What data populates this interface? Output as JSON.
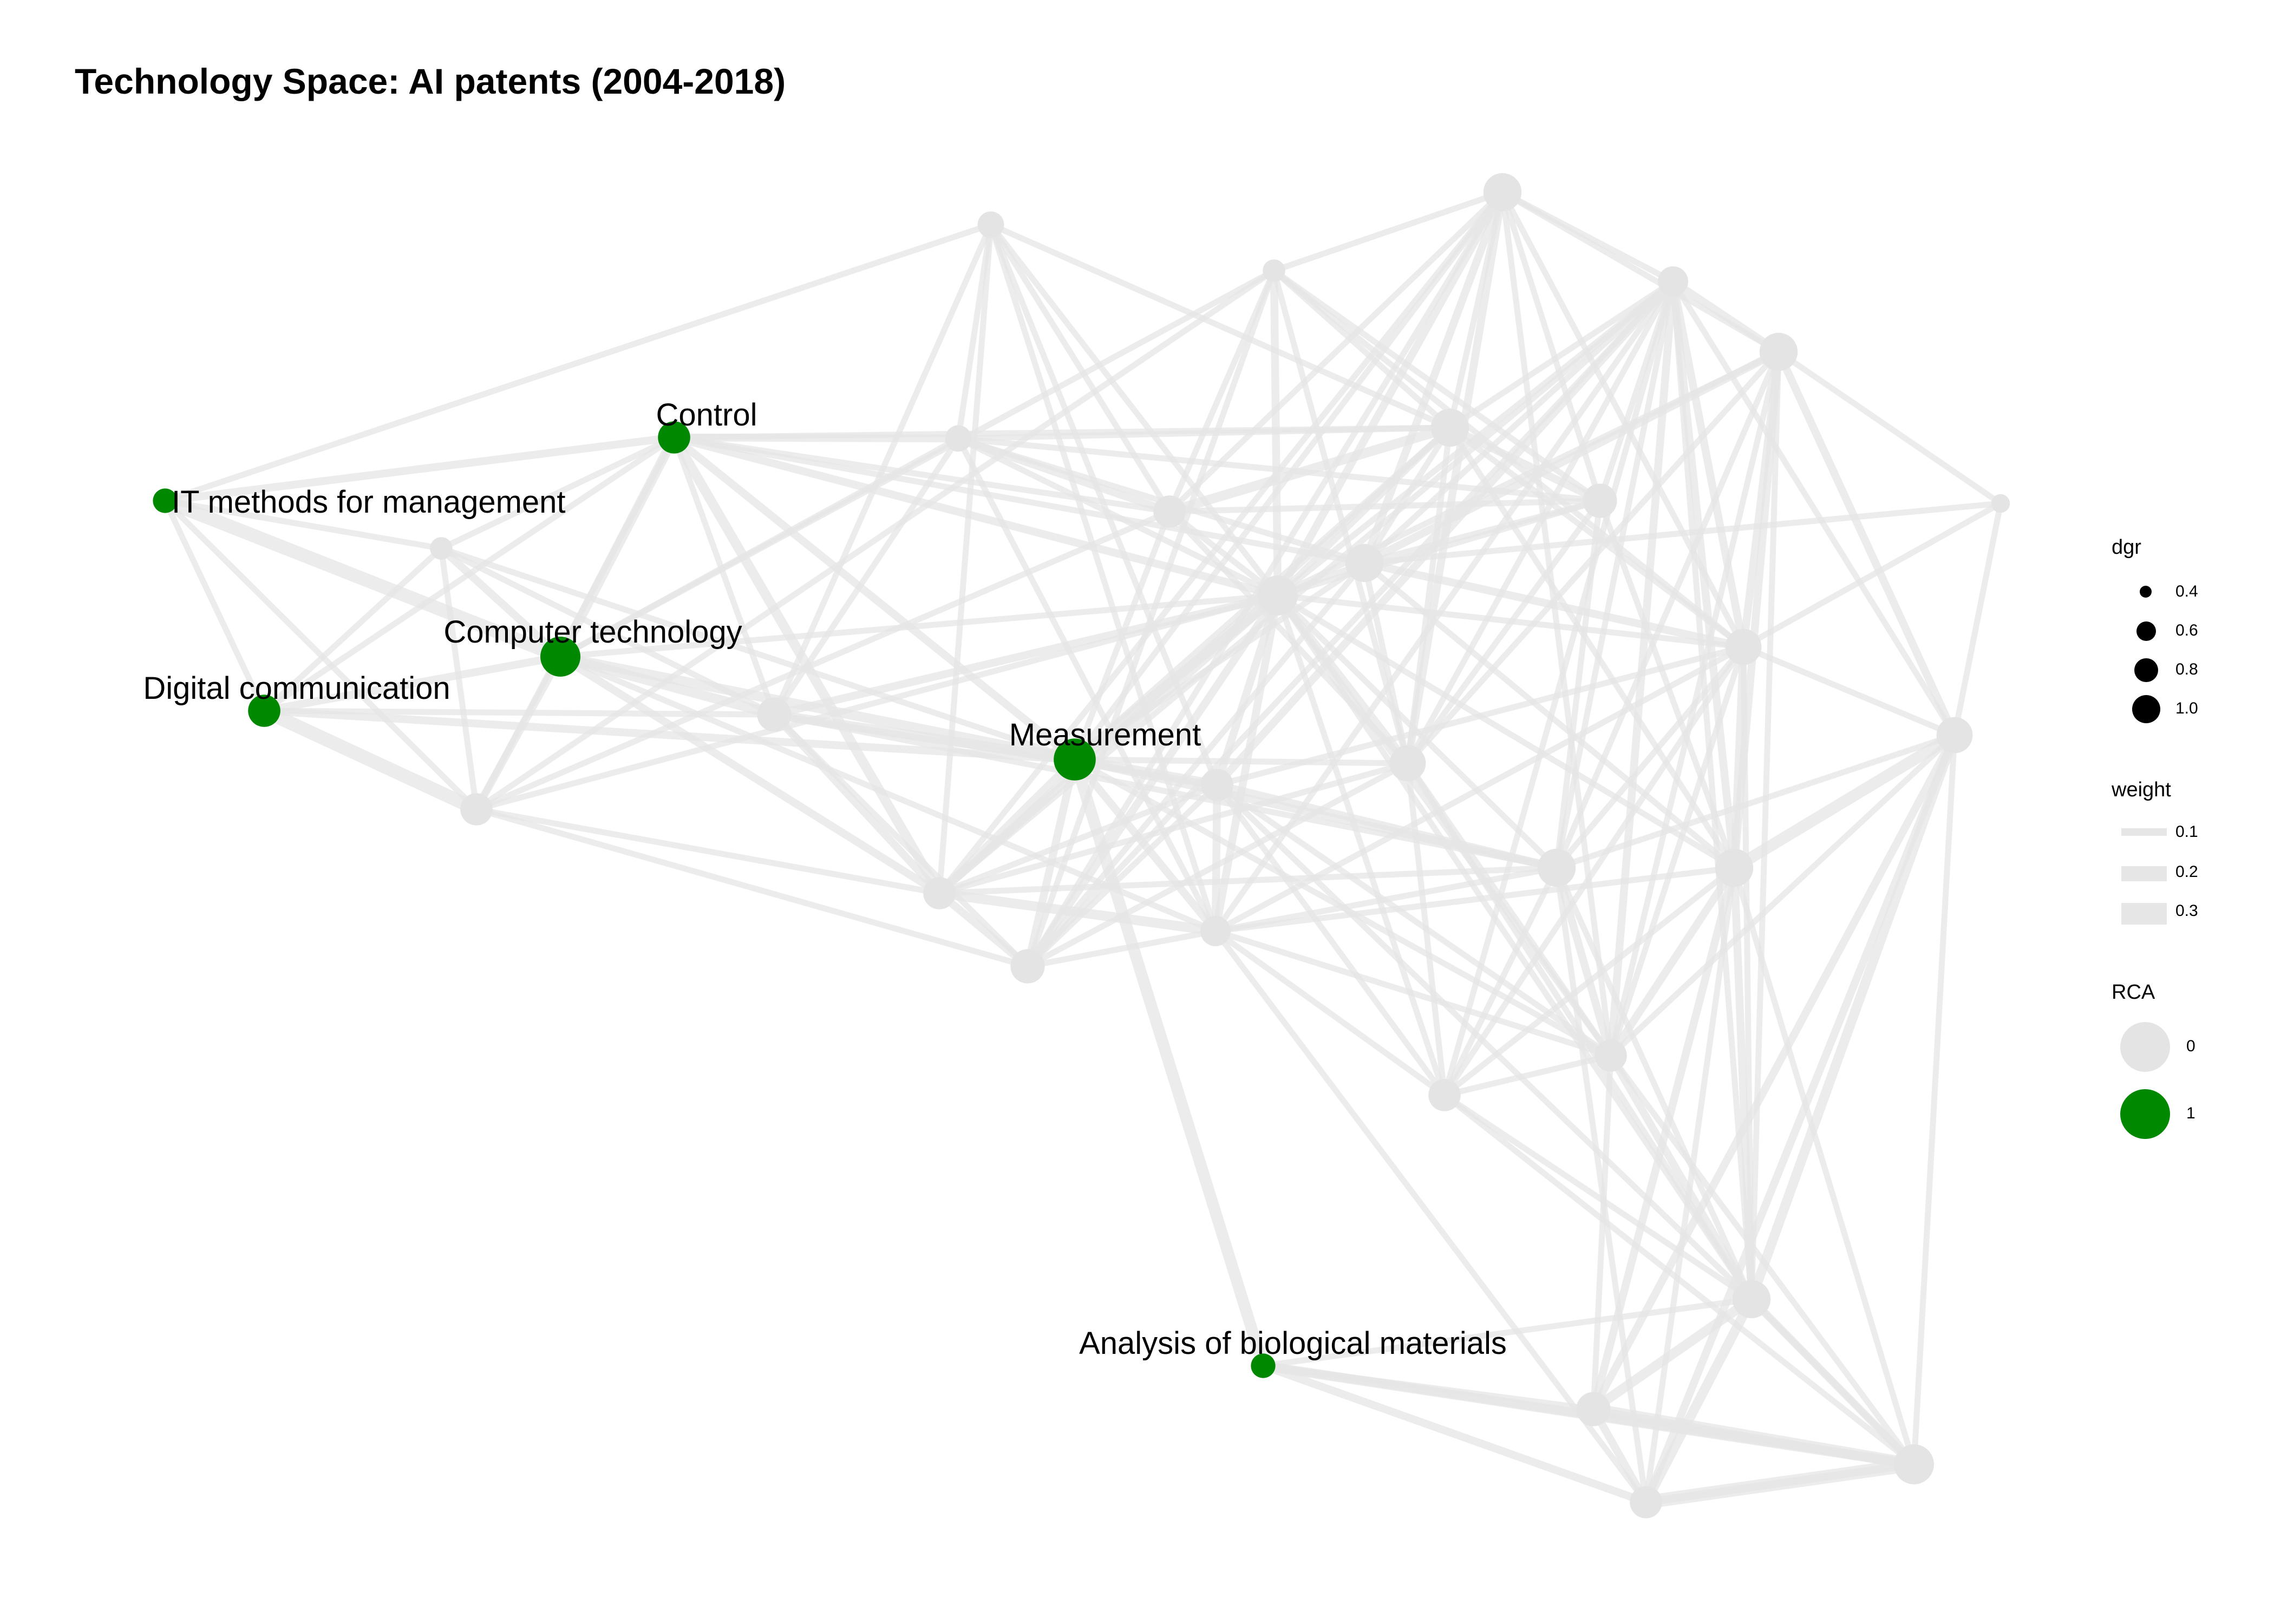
{
  "title": "Technology Space: AI patents (2004-2018)",
  "colors": {
    "rca_1": "#008800",
    "rca_0": "#e4e4e4",
    "edge": "#e6e6e6",
    "legend_dot": "#000000"
  },
  "legend": {
    "dgr": {
      "title": "dgr",
      "labels": [
        "0.4",
        "0.6",
        "0.8",
        "1.0"
      ]
    },
    "weight": {
      "title": "weight",
      "labels": [
        "0.1",
        "0.2",
        "0.3"
      ]
    },
    "rca": {
      "title": "RCA",
      "labels": [
        "0",
        "1"
      ]
    }
  },
  "nodes": [
    {
      "id": "it",
      "label": "IT methods for management",
      "rca": 1,
      "dgr": 0.35
    },
    {
      "id": "ctrl",
      "label": "Control",
      "rca": 1,
      "dgr": 0.55
    },
    {
      "id": "ct",
      "label": "Computer technology",
      "rca": 1,
      "dgr": 0.75
    },
    {
      "id": "dc",
      "label": "Digital communication",
      "rca": 1,
      "dgr": 0.55
    },
    {
      "id": "meas",
      "label": "Measurement",
      "rca": 1,
      "dgr": 0.8
    },
    {
      "id": "bio",
      "label": "Analysis of biological materials",
      "rca": 1,
      "dgr": 0.35
    },
    {
      "id": "n1",
      "label": "",
      "rca": 0,
      "dgr": 0.3
    },
    {
      "id": "n2",
      "label": "",
      "rca": 0,
      "dgr": 0.55
    },
    {
      "id": "n3",
      "label": "",
      "rca": 0,
      "dgr": 0.6
    },
    {
      "id": "n4",
      "label": "",
      "rca": 0,
      "dgr": 0.55
    },
    {
      "id": "n5",
      "label": "",
      "rca": 0,
      "dgr": 0.4
    },
    {
      "id": "n6",
      "label": "",
      "rca": 0,
      "dgr": 0.4
    },
    {
      "id": "n7",
      "label": "",
      "rca": 0,
      "dgr": 0.55
    },
    {
      "id": "n8",
      "label": "",
      "rca": 0,
      "dgr": 0.75
    },
    {
      "id": "n9",
      "label": "",
      "rca": 0,
      "dgr": 0.55
    },
    {
      "id": "n10",
      "label": "",
      "rca": 0,
      "dgr": 0.6
    },
    {
      "id": "n11",
      "label": "",
      "rca": 0,
      "dgr": 0.5
    },
    {
      "id": "n12",
      "label": "",
      "rca": 0,
      "dgr": 0.3
    },
    {
      "id": "n13",
      "label": "",
      "rca": 0,
      "dgr": 0.7
    },
    {
      "id": "n14",
      "label": "",
      "rca": 0,
      "dgr": 0.65
    },
    {
      "id": "n15",
      "label": "",
      "rca": 0,
      "dgr": 0.7
    },
    {
      "id": "n16",
      "label": "",
      "rca": 0,
      "dgr": 0.6
    },
    {
      "id": "n17",
      "label": "",
      "rca": 0,
      "dgr": 0.7
    },
    {
      "id": "n18",
      "label": "",
      "rca": 0,
      "dgr": 0.55
    },
    {
      "id": "n19",
      "label": "",
      "rca": 0,
      "dgr": 0.5
    },
    {
      "id": "n20",
      "label": "",
      "rca": 0,
      "dgr": 0.7
    },
    {
      "id": "n21",
      "label": "",
      "rca": 0,
      "dgr": 0.65
    },
    {
      "id": "n22",
      "label": "",
      "rca": 0,
      "dgr": 0.55
    },
    {
      "id": "n23",
      "label": "",
      "rca": 0,
      "dgr": 0.7
    },
    {
      "id": "n24",
      "label": "",
      "rca": 0,
      "dgr": 0.7
    },
    {
      "id": "n25",
      "label": "",
      "rca": 0,
      "dgr": 0.65
    },
    {
      "id": "n26",
      "label": "",
      "rca": 0,
      "dgr": 0.7
    },
    {
      "id": "n27",
      "label": "",
      "rca": 0,
      "dgr": 0.6
    },
    {
      "id": "n28",
      "label": "",
      "rca": 0,
      "dgr": 0.55
    },
    {
      "id": "n29",
      "label": "",
      "rca": 0,
      "dgr": 0.75
    },
    {
      "id": "n30",
      "label": "",
      "rca": 0,
      "dgr": 0.5
    },
    {
      "id": "n31",
      "label": "",
      "rca": 0,
      "dgr": 0.2
    }
  ],
  "edges": [
    {
      "s": "it",
      "t": "ctrl",
      "w": 0.15
    },
    {
      "s": "it",
      "t": "ct",
      "w": 0.3
    },
    {
      "s": "it",
      "t": "n2",
      "w": 0.1
    },
    {
      "s": "it",
      "t": "n1",
      "w": 0.1
    },
    {
      "s": "it",
      "t": "dc",
      "w": 0.1
    },
    {
      "s": "it",
      "t": "n6",
      "w": 0.1
    },
    {
      "s": "n1",
      "t": "ct",
      "w": 0.15
    },
    {
      "s": "n1",
      "t": "n2",
      "w": 0.1
    },
    {
      "s": "n1",
      "t": "n3",
      "w": 0.1
    },
    {
      "s": "n1",
      "t": "ctrl",
      "w": 0.1
    },
    {
      "s": "n1",
      "t": "meas",
      "w": 0.1
    },
    {
      "s": "dc",
      "t": "ct",
      "w": 0.15
    },
    {
      "s": "dc",
      "t": "n2",
      "w": 0.3
    },
    {
      "s": "dc",
      "t": "n3",
      "w": 0.1
    },
    {
      "s": "dc",
      "t": "ctrl",
      "w": 0.1
    },
    {
      "s": "dc",
      "t": "meas",
      "w": 0.15
    },
    {
      "s": "dc",
      "t": "n1",
      "w": 0.1
    },
    {
      "s": "ct",
      "t": "ctrl",
      "w": 0.2
    },
    {
      "s": "ct",
      "t": "n2",
      "w": 0.15
    },
    {
      "s": "ct",
      "t": "n3",
      "w": 0.2
    },
    {
      "s": "ct",
      "t": "meas",
      "w": 0.2
    },
    {
      "s": "ct",
      "t": "n4",
      "w": 0.15
    },
    {
      "s": "ct",
      "t": "n8",
      "w": 0.1
    },
    {
      "s": "ct",
      "t": "n5",
      "w": 0.1
    },
    {
      "s": "ct",
      "t": "n11",
      "w": 0.1
    },
    {
      "s": "ct",
      "t": "n12",
      "w": 0.1
    },
    {
      "s": "ctrl",
      "t": "n5",
      "w": 0.15
    },
    {
      "s": "ctrl",
      "t": "n3",
      "w": 0.1
    },
    {
      "s": "ctrl",
      "t": "n4",
      "w": 0.2
    },
    {
      "s": "ctrl",
      "t": "meas",
      "w": 0.15
    },
    {
      "s": "ctrl",
      "t": "n8",
      "w": 0.15
    },
    {
      "s": "ctrl",
      "t": "n7",
      "w": 0.1
    },
    {
      "s": "ctrl",
      "t": "n2",
      "w": 0.1
    },
    {
      "s": "ctrl",
      "t": "n13",
      "w": 0.1
    },
    {
      "s": "ctrl",
      "t": "n20",
      "w": 0.1
    },
    {
      "s": "n2",
      "t": "n4",
      "w": 0.1
    },
    {
      "s": "n2",
      "t": "n8",
      "w": 0.1
    },
    {
      "s": "n2",
      "t": "n10",
      "w": 0.1
    },
    {
      "s": "n2",
      "t": "n12",
      "w": 0.1
    },
    {
      "s": "n2",
      "t": "n7",
      "w": 0.1
    },
    {
      "s": "n3",
      "t": "meas",
      "w": 0.2
    },
    {
      "s": "n3",
      "t": "n4",
      "w": 0.15
    },
    {
      "s": "n3",
      "t": "n8",
      "w": 0.15
    },
    {
      "s": "n3",
      "t": "n5",
      "w": 0.1
    },
    {
      "s": "n3",
      "t": "n10",
      "w": 0.1
    },
    {
      "s": "n3",
      "t": "n9",
      "w": 0.1
    },
    {
      "s": "n3",
      "t": "n17",
      "w": 0.1
    },
    {
      "s": "n3",
      "t": "n6",
      "w": 0.1
    },
    {
      "s": "meas",
      "t": "n9",
      "w": 0.2
    },
    {
      "s": "meas",
      "t": "n4",
      "w": 0.15
    },
    {
      "s": "meas",
      "t": "n8",
      "w": 0.2
    },
    {
      "s": "meas",
      "t": "n10",
      "w": 0.15
    },
    {
      "s": "meas",
      "t": "n11",
      "w": 0.15
    },
    {
      "s": "meas",
      "t": "bio",
      "w": 0.25
    },
    {
      "s": "meas",
      "t": "n17",
      "w": 0.15
    },
    {
      "s": "meas",
      "t": "n13",
      "w": 0.1
    },
    {
      "s": "meas",
      "t": "n14",
      "w": 0.1
    },
    {
      "s": "meas",
      "t": "n7",
      "w": 0.1
    },
    {
      "s": "meas",
      "t": "n20",
      "w": 0.1
    },
    {
      "s": "meas",
      "t": "n22",
      "w": 0.1
    },
    {
      "s": "meas",
      "t": "n15",
      "w": 0.1
    },
    {
      "s": "n4",
      "t": "n11",
      "w": 0.2
    },
    {
      "s": "n4",
      "t": "n10",
      "w": 0.15
    },
    {
      "s": "n4",
      "t": "n9",
      "w": 0.1
    },
    {
      "s": "n4",
      "t": "n8",
      "w": 0.15
    },
    {
      "s": "n4",
      "t": "n14",
      "w": 0.1
    },
    {
      "s": "n4",
      "t": "n15",
      "w": 0.1
    },
    {
      "s": "n4",
      "t": "n6",
      "w": 0.1
    },
    {
      "s": "n4",
      "t": "n13",
      "w": 0.1
    },
    {
      "s": "n4",
      "t": "n19",
      "w": 0.1
    },
    {
      "s": "n4",
      "t": "n17",
      "w": 0.1
    },
    {
      "s": "n5",
      "t": "n6",
      "w": 0.1
    },
    {
      "s": "n5",
      "t": "n7",
      "w": 0.15
    },
    {
      "s": "n5",
      "t": "n8",
      "w": 0.1
    },
    {
      "s": "n5",
      "t": "n13",
      "w": 0.1
    },
    {
      "s": "n5",
      "t": "n16",
      "w": 0.1
    },
    {
      "s": "n5",
      "t": "n20",
      "w": 0.1
    },
    {
      "s": "n5",
      "t": "n11",
      "w": 0.1
    },
    {
      "s": "n6",
      "t": "n7",
      "w": 0.1
    },
    {
      "s": "n6",
      "t": "n8",
      "w": 0.1
    },
    {
      "s": "n6",
      "t": "n13",
      "w": 0.1
    },
    {
      "s": "n6",
      "t": "n9",
      "w": 0.1
    },
    {
      "s": "n6",
      "t": "n11",
      "w": 0.1
    },
    {
      "s": "n7",
      "t": "n13",
      "w": 0.2
    },
    {
      "s": "n7",
      "t": "n8",
      "w": 0.1
    },
    {
      "s": "n7",
      "t": "n12",
      "w": 0.1
    },
    {
      "s": "n7",
      "t": "n14",
      "w": 0.1
    },
    {
      "s": "n7",
      "t": "n16",
      "w": 0.1
    },
    {
      "s": "n7",
      "t": "n15",
      "w": 0.1
    },
    {
      "s": "n8",
      "t": "n9",
      "w": 0.15
    },
    {
      "s": "n8",
      "t": "n10",
      "w": 0.15
    },
    {
      "s": "n8",
      "t": "n11",
      "w": 0.15
    },
    {
      "s": "n8",
      "t": "n12",
      "w": 0.15
    },
    {
      "s": "n8",
      "t": "n13",
      "w": 0.1
    },
    {
      "s": "n8",
      "t": "n14",
      "w": 0.15
    },
    {
      "s": "n8",
      "t": "n15",
      "w": 0.15
    },
    {
      "s": "n8",
      "t": "n16",
      "w": 0.1
    },
    {
      "s": "n8",
      "t": "n17",
      "w": 0.1
    },
    {
      "s": "n8",
      "t": "n18",
      "w": 0.1
    },
    {
      "s": "n8",
      "t": "n19",
      "w": 0.1
    },
    {
      "s": "n8",
      "t": "n20",
      "w": 0.1
    },
    {
      "s": "n8",
      "t": "n21",
      "w": 0.1
    },
    {
      "s": "n8",
      "t": "n22",
      "w": 0.1
    },
    {
      "s": "n8",
      "t": "n23",
      "w": 0.1
    },
    {
      "s": "n8",
      "t": "n24",
      "w": 0.1
    },
    {
      "s": "n8",
      "t": "n26",
      "w": 0.1
    },
    {
      "s": "n9",
      "t": "n10",
      "w": 0.1
    },
    {
      "s": "n9",
      "t": "n11",
      "w": 0.15
    },
    {
      "s": "n9",
      "t": "n17",
      "w": 0.15
    },
    {
      "s": "n9",
      "t": "n18",
      "w": 0.1
    },
    {
      "s": "n9",
      "t": "n19",
      "w": 0.15
    },
    {
      "s": "n9",
      "t": "n21",
      "w": 0.1
    },
    {
      "s": "n9",
      "t": "n22",
      "w": 0.1
    },
    {
      "s": "n9",
      "t": "n26",
      "w": 0.1
    },
    {
      "s": "n10",
      "t": "n11",
      "w": 0.1
    },
    {
      "s": "n10",
      "t": "n12",
      "w": 0.1
    },
    {
      "s": "n10",
      "t": "n14",
      "w": 0.1
    },
    {
      "s": "n10",
      "t": "n19",
      "w": 0.1
    },
    {
      "s": "n10",
      "t": "n20",
      "w": 0.1
    },
    {
      "s": "n10",
      "t": "n15",
      "w": 0.1
    },
    {
      "s": "n11",
      "t": "n17",
      "w": 0.1
    },
    {
      "s": "n11",
      "t": "n19",
      "w": 0.1
    },
    {
      "s": "n11",
      "t": "n21",
      "w": 0.1
    },
    {
      "s": "n11",
      "t": "n22",
      "w": 0.1
    },
    {
      "s": "n11",
      "t": "n24",
      "w": 0.1
    },
    {
      "s": "n11",
      "t": "n18",
      "w": 0.1
    },
    {
      "s": "n12",
      "t": "n13",
      "w": 0.1
    },
    {
      "s": "n12",
      "t": "n14",
      "w": 0.1
    },
    {
      "s": "n12",
      "t": "n15",
      "w": 0.1
    },
    {
      "s": "n12",
      "t": "n16",
      "w": 0.1
    },
    {
      "s": "n13",
      "t": "n14",
      "w": 0.1
    },
    {
      "s": "n13",
      "t": "n15",
      "w": 0.1
    },
    {
      "s": "n13",
      "t": "n16",
      "w": 0.15
    },
    {
      "s": "n13",
      "t": "n19",
      "w": 0.1
    },
    {
      "s": "n13",
      "t": "n20",
      "w": 0.1
    },
    {
      "s": "n13",
      "t": "n21",
      "w": 0.1
    },
    {
      "s": "n14",
      "t": "n15",
      "w": 0.15
    },
    {
      "s": "n14",
      "t": "n16",
      "w": 0.1
    },
    {
      "s": "n14",
      "t": "n18",
      "w": 0.1
    },
    {
      "s": "n14",
      "t": "n19",
      "w": 0.1
    },
    {
      "s": "n14",
      "t": "n20",
      "w": 0.1
    },
    {
      "s": "n14",
      "t": "n22",
      "w": 0.1
    },
    {
      "s": "n14",
      "t": "n26",
      "w": 0.1
    },
    {
      "s": "n14",
      "t": "n23",
      "w": 0.1
    },
    {
      "s": "n15",
      "t": "n16",
      "w": 0.1
    },
    {
      "s": "n15",
      "t": "n20",
      "w": 0.15
    },
    {
      "s": "n15",
      "t": "n21",
      "w": 0.1
    },
    {
      "s": "n15",
      "t": "n22",
      "w": 0.1
    },
    {
      "s": "n15",
      "t": "n19",
      "w": 0.1
    },
    {
      "s": "n15",
      "t": "n23",
      "w": 0.1
    },
    {
      "s": "n16",
      "t": "n20",
      "w": 0.1
    },
    {
      "s": "n16",
      "t": "n17",
      "w": 0.1
    },
    {
      "s": "n16",
      "t": "n19",
      "w": 0.1
    },
    {
      "s": "n17",
      "t": "n18",
      "w": 0.1
    },
    {
      "s": "n17",
      "t": "n19",
      "w": 0.1
    },
    {
      "s": "n17",
      "t": "n21",
      "w": 0.1
    },
    {
      "s": "n17",
      "t": "n22",
      "w": 0.15
    },
    {
      "s": "n17",
      "t": "n23",
      "w": 0.1
    },
    {
      "s": "n17",
      "t": "n25",
      "w": 0.1
    },
    {
      "s": "n18",
      "t": "n19",
      "w": 0.1
    },
    {
      "s": "n18",
      "t": "n21",
      "w": 0.1
    },
    {
      "s": "n18",
      "t": "n22",
      "w": 0.1
    },
    {
      "s": "n18",
      "t": "n24",
      "w": 0.1
    },
    {
      "s": "n18",
      "t": "n29",
      "w": 0.1
    },
    {
      "s": "n19",
      "t": "n20",
      "w": 0.1
    },
    {
      "s": "n19",
      "t": "n21",
      "w": 0.15
    },
    {
      "s": "n19",
      "t": "n22",
      "w": 0.15
    },
    {
      "s": "n19",
      "t": "n23",
      "w": 0.15
    },
    {
      "s": "n19",
      "t": "n24",
      "w": 0.15
    },
    {
      "s": "n19",
      "t": "n25",
      "w": 0.1
    },
    {
      "s": "n20",
      "t": "n21",
      "w": 0.15
    },
    {
      "s": "n20",
      "t": "n23",
      "w": 0.15
    },
    {
      "s": "n20",
      "t": "n24",
      "w": 0.1
    },
    {
      "s": "n20",
      "t": "n31",
      "w": 0.1
    },
    {
      "s": "n21",
      "t": "n22",
      "w": 0.1
    },
    {
      "s": "n21",
      "t": "n23",
      "w": 0.15
    },
    {
      "s": "n21",
      "t": "n24",
      "w": 0.15
    },
    {
      "s": "n21",
      "t": "n25",
      "w": 0.1
    },
    {
      "s": "n21",
      "t": "n31",
      "w": 0.1
    },
    {
      "s": "n21",
      "t": "n26",
      "w": 0.1
    },
    {
      "s": "n22",
      "t": "n23",
      "w": 0.1
    },
    {
      "s": "n22",
      "t": "n24",
      "w": 0.15
    },
    {
      "s": "n22",
      "t": "n25",
      "w": 0.1
    },
    {
      "s": "n22",
      "t": "n26",
      "w": 0.15
    },
    {
      "s": "n22",
      "t": "n27",
      "w": 0.1
    },
    {
      "s": "n23",
      "t": "n24",
      "w": 0.15
    },
    {
      "s": "n23",
      "t": "n25",
      "w": 0.15
    },
    {
      "s": "n23",
      "t": "n31",
      "w": 0.1
    },
    {
      "s": "n23",
      "t": "n26",
      "w": 0.1
    },
    {
      "s": "n24",
      "t": "n25",
      "w": 0.25
    },
    {
      "s": "n24",
      "t": "n26",
      "w": 0.15
    },
    {
      "s": "n24",
      "t": "n27",
      "w": 0.15
    },
    {
      "s": "n24",
      "t": "n28",
      "w": 0.1
    },
    {
      "s": "n24",
      "t": "n30",
      "w": 0.1
    },
    {
      "s": "n25",
      "t": "n26",
      "w": 0.2
    },
    {
      "s": "n25",
      "t": "n27",
      "w": 0.15
    },
    {
      "s": "n25",
      "t": "n28",
      "w": 0.15
    },
    {
      "s": "n25",
      "t": "n31",
      "w": 0.1
    },
    {
      "s": "n25",
      "t": "n29",
      "w": 0.1
    },
    {
      "s": "n26",
      "t": "n27",
      "w": 0.2
    },
    {
      "s": "n26",
      "t": "n28",
      "w": 0.2
    },
    {
      "s": "n26",
      "t": "n29",
      "w": 0.15
    },
    {
      "s": "n26",
      "t": "n30",
      "w": 0.1
    },
    {
      "s": "n27",
      "t": "n28",
      "w": 0.15
    },
    {
      "s": "n27",
      "t": "n29",
      "w": 0.25
    },
    {
      "s": "n27",
      "t": "n30",
      "w": 0.1
    },
    {
      "s": "n27",
      "t": "bio",
      "w": 0.1
    },
    {
      "s": "n28",
      "t": "n29",
      "w": 0.3
    },
    {
      "s": "n28",
      "t": "n30",
      "w": 0.15
    },
    {
      "s": "n28",
      "t": "bio",
      "w": 0.15
    },
    {
      "s": "n28",
      "t": "n17",
      "w": 0.1
    },
    {
      "s": "n29",
      "t": "n30",
      "w": 0.2
    },
    {
      "s": "n29",
      "t": "bio",
      "w": 0.15
    },
    {
      "s": "bio",
      "t": "n30",
      "w": 0.2
    },
    {
      "s": "bio",
      "t": "n26",
      "w": 0.1
    },
    {
      "s": "n11",
      "t": "n28",
      "w": 0.1
    },
    {
      "s": "n12",
      "t": "n21",
      "w": 0.1
    },
    {
      "s": "n13",
      "t": "n24",
      "w": 0.1
    },
    {
      "s": "n16",
      "t": "n24",
      "w": 0.1
    },
    {
      "s": "n22",
      "t": "n29",
      "w": 0.1
    },
    {
      "s": "n18",
      "t": "n26",
      "w": 0.1
    },
    {
      "s": "n19",
      "t": "n26",
      "w": 0.1
    },
    {
      "s": "n17",
      "t": "n26",
      "w": 0.1
    }
  ]
}
